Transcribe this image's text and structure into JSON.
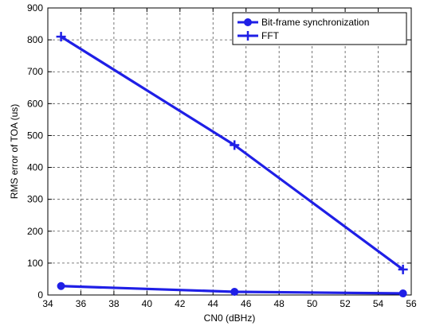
{
  "chart_data": {
    "type": "line",
    "xlabel": "CN0 (dBHz)",
    "ylabel": "RMS error of TOA (us)",
    "xlim": [
      34,
      56
    ],
    "ylim": [
      0,
      900
    ],
    "xticks": [
      34,
      36,
      38,
      40,
      42,
      44,
      46,
      48,
      50,
      52,
      54,
      56
    ],
    "yticks": [
      0,
      100,
      200,
      300,
      400,
      500,
      600,
      700,
      800,
      900
    ],
    "grid": true,
    "legend_position": "top-right",
    "series": [
      {
        "name": "Bit-frame synchronization",
        "marker": "circle",
        "color": "#1f1fe6",
        "x": [
          34.8,
          45.3,
          55.5
        ],
        "y": [
          28,
          10,
          5
        ]
      },
      {
        "name": "FFT",
        "marker": "plus",
        "color": "#1f1fe6",
        "x": [
          34.8,
          45.3,
          55.5
        ],
        "y": [
          810,
          470,
          80
        ]
      }
    ]
  }
}
